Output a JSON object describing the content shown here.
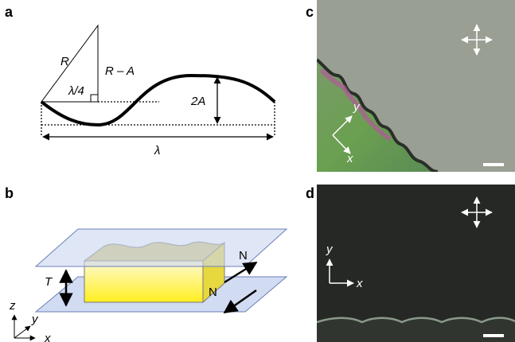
{
  "panels": {
    "a": {
      "label": "a",
      "hypotenuse": "R",
      "leg": "R – A",
      "quarter": "λ/4",
      "amplitude": "2A",
      "wavelength": "λ"
    },
    "b": {
      "label": "b",
      "thickness": "T",
      "force_top": "N",
      "force_bottom": "N",
      "axis_z": "z",
      "axis_y": "y",
      "axis_x": "x"
    },
    "c": {
      "label": "c",
      "axis_y": "y",
      "axis_x": "x"
    },
    "d": {
      "label": "d",
      "axis_y": "y",
      "axis_x": "x"
    }
  }
}
